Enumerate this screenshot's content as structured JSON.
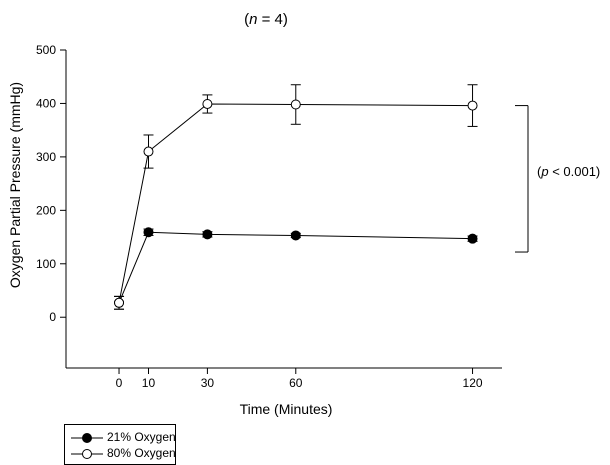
{
  "chart_data": {
    "type": "line",
    "title": "(n = 4)",
    "title_parts": {
      "open": "(",
      "italic": "n",
      "rest": " = 4)"
    },
    "xlabel": "Time (Minutes)",
    "ylabel": "Oxygen Partial Pressure (mmHg)",
    "x_ticks": [
      0,
      10,
      30,
      60,
      120
    ],
    "y_ticks": [
      0,
      100,
      200,
      300,
      400,
      500
    ],
    "xlim": [
      -18,
      130
    ],
    "ylim": [
      -95,
      500
    ],
    "x": [
      0,
      10,
      30,
      60,
      120
    ],
    "series": [
      {
        "name": "21% Oxygen",
        "marker": "filled-circle",
        "values": [
          27,
          159,
          155,
          153,
          147
        ],
        "errors": [
          12,
          6,
          5,
          4,
          5
        ]
      },
      {
        "name": "80% Oxygen",
        "marker": "open-circle",
        "values": [
          27,
          310,
          399,
          398,
          396
        ],
        "errors": [
          12,
          31,
          17,
          37,
          39
        ]
      }
    ],
    "annotation": {
      "text": "(p < 0.001)",
      "text_parts": {
        "open": "(",
        "italic": "p",
        "rest": " < 0.001)"
      },
      "bracket_from": 396,
      "bracket_to": 122
    },
    "grid": false,
    "legend_placement": "bottom-left"
  }
}
